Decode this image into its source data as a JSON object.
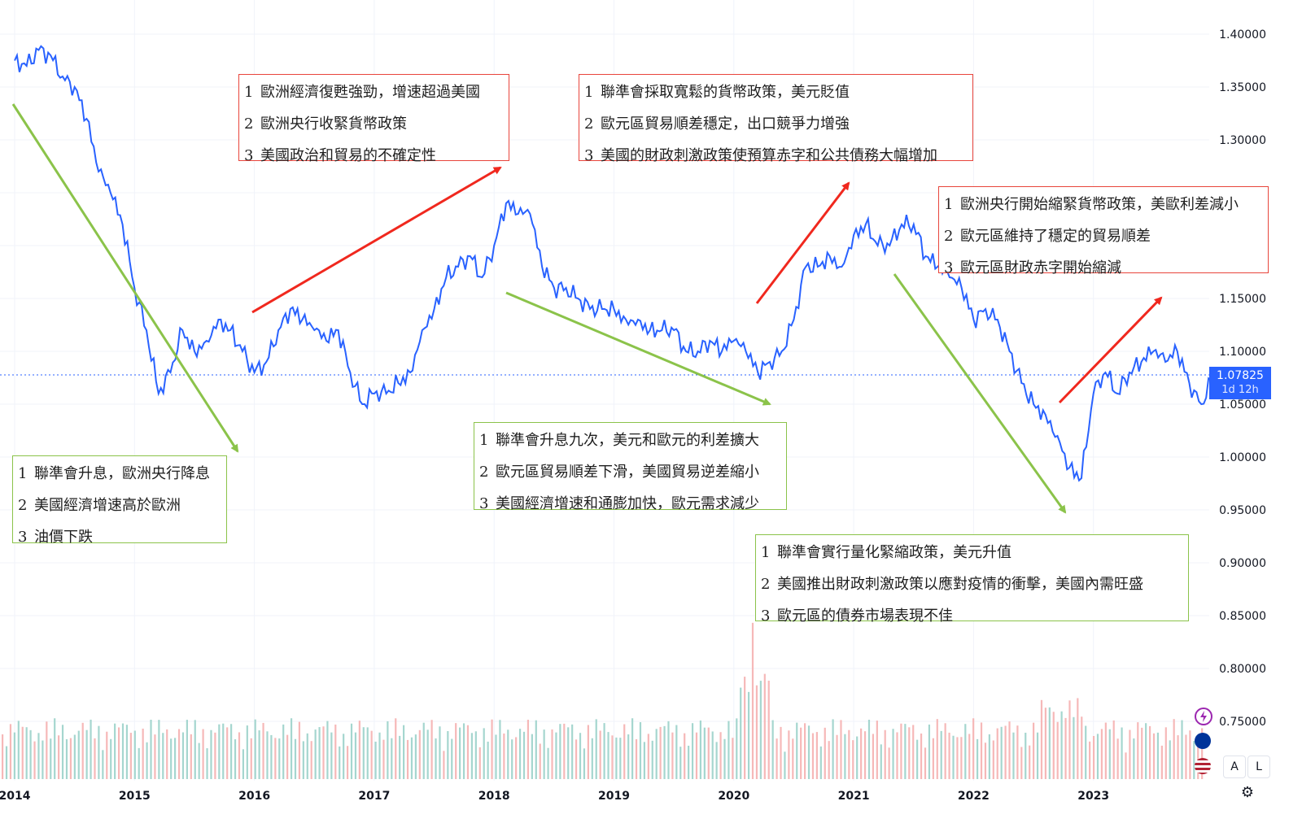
{
  "chart_data": {
    "type": "line",
    "x": [
      2014.0,
      2014.1,
      2014.2,
      2014.3,
      2014.4,
      2014.5,
      2014.6,
      2014.7,
      2014.8,
      2014.9,
      2015.0,
      2015.1,
      2015.2,
      2015.3,
      2015.4,
      2015.5,
      2015.6,
      2015.7,
      2015.8,
      2015.9,
      2016.0,
      2016.1,
      2016.2,
      2016.3,
      2016.4,
      2016.5,
      2016.6,
      2016.7,
      2016.8,
      2016.9,
      2017.0,
      2017.1,
      2017.2,
      2017.3,
      2017.4,
      2017.5,
      2017.6,
      2017.7,
      2017.8,
      2017.9,
      2018.0,
      2018.1,
      2018.2,
      2018.3,
      2018.4,
      2018.5,
      2018.6,
      2018.7,
      2018.8,
      2018.9,
      2019.0,
      2019.1,
      2019.2,
      2019.3,
      2019.4,
      2019.5,
      2019.6,
      2019.7,
      2019.8,
      2019.9,
      2020.0,
      2020.1,
      2020.2,
      2020.3,
      2020.4,
      2020.5,
      2020.6,
      2020.7,
      2020.8,
      2020.9,
      2021.0,
      2021.1,
      2021.2,
      2021.3,
      2021.4,
      2021.5,
      2021.6,
      2021.7,
      2021.8,
      2021.9,
      2022.0,
      2022.1,
      2022.2,
      2022.3,
      2022.4,
      2022.5,
      2022.6,
      2022.7,
      2022.8,
      2022.9,
      2023.0,
      2023.1,
      2023.2,
      2023.3,
      2023.4,
      2023.5,
      2023.6,
      2023.7,
      2023.8,
      2023.9,
      2024.0
    ],
    "values": [
      1.375,
      1.37,
      1.385,
      1.38,
      1.36,
      1.35,
      1.32,
      1.27,
      1.25,
      1.22,
      1.16,
      1.12,
      1.06,
      1.08,
      1.12,
      1.1,
      1.11,
      1.13,
      1.12,
      1.1,
      1.08,
      1.09,
      1.12,
      1.14,
      1.13,
      1.12,
      1.11,
      1.12,
      1.08,
      1.05,
      1.06,
      1.06,
      1.07,
      1.08,
      1.12,
      1.14,
      1.17,
      1.18,
      1.19,
      1.17,
      1.2,
      1.24,
      1.23,
      1.23,
      1.18,
      1.16,
      1.16,
      1.15,
      1.14,
      1.14,
      1.14,
      1.13,
      1.13,
      1.12,
      1.12,
      1.12,
      1.1,
      1.1,
      1.11,
      1.1,
      1.11,
      1.1,
      1.08,
      1.09,
      1.1,
      1.13,
      1.18,
      1.18,
      1.19,
      1.18,
      1.21,
      1.22,
      1.2,
      1.2,
      1.22,
      1.22,
      1.19,
      1.18,
      1.17,
      1.16,
      1.13,
      1.14,
      1.13,
      1.1,
      1.07,
      1.05,
      1.04,
      1.02,
      0.99,
      0.98,
      1.06,
      1.08,
      1.06,
      1.08,
      1.09,
      1.1,
      1.09,
      1.1,
      1.07,
      1.05,
      1.08
    ],
    "series_color": "#2962ff",
    "last_value": "1.07825",
    "countdown": "1d 12h",
    "xlabels": [
      "2014",
      "2015",
      "2016",
      "2017",
      "2018",
      "2019",
      "2020",
      "2021",
      "2022",
      "2023"
    ],
    "ylabels": [
      "1.40000",
      "1.35000",
      "1.30000",
      "1.25000",
      "1.20000",
      "1.15000",
      "1.10000",
      "1.05000",
      "1.00000",
      "0.95000",
      "0.90000",
      "0.85000",
      "0.80000",
      "0.75000"
    ],
    "ylim": [
      0.71,
      1.42
    ],
    "xlim": [
      2014.0,
      2024.5
    ],
    "grid": true,
    "volume": true
  },
  "annotations": [
    {
      "id": "box1",
      "color": "green",
      "lines": [
        "聯準會升息，歐洲央行降息",
        "美國經濟增速高於歐洲",
        "油價下跌"
      ]
    },
    {
      "id": "box2",
      "color": "red",
      "lines": [
        "歐洲經濟復甦強勁，增速超過美國",
        "歐洲央行收緊貨幣政策",
        "美國政治和貿易的不確定性"
      ]
    },
    {
      "id": "box3",
      "color": "green",
      "lines": [
        "聯準會升息九次，美元和歐元的利差擴大",
        "歐元區貿易順差下滑，美國貿易逆差縮小",
        "美國經濟增速和通膨加快，歐元需求減少"
      ]
    },
    {
      "id": "box4",
      "color": "red",
      "lines": [
        "聯準會採取寬鬆的貨幣政策，美元貶值",
        "歐元區貿易順差穩定，出口競爭力增強",
        "美國的財政刺激政策使預算赤字和公共債務大幅增加"
      ]
    },
    {
      "id": "box5",
      "color": "green",
      "lines": [
        "聯準會實行量化緊縮政策，美元升值",
        "美國推出財政刺激政策以應對疫情的衝擊，美國內需旺盛",
        "歐元區的債券市場表現不佳"
      ]
    },
    {
      "id": "box6",
      "color": "red",
      "lines": [
        "歐洲央行開始縮緊貨幣政策，美歐利差減小",
        "歐元區維持了穩定的貿易順差",
        "歐元區財政赤字開始縮減"
      ]
    }
  ],
  "arrows_color": {
    "red": "#f0281e",
    "green": "#8bc34a"
  },
  "buttons": {
    "auto": "A",
    "log": "L"
  },
  "icons": {
    "settings": "gear-icon",
    "events": [
      "lightning-icon",
      "eu-flag-icon",
      "us-flag-icon"
    ]
  }
}
